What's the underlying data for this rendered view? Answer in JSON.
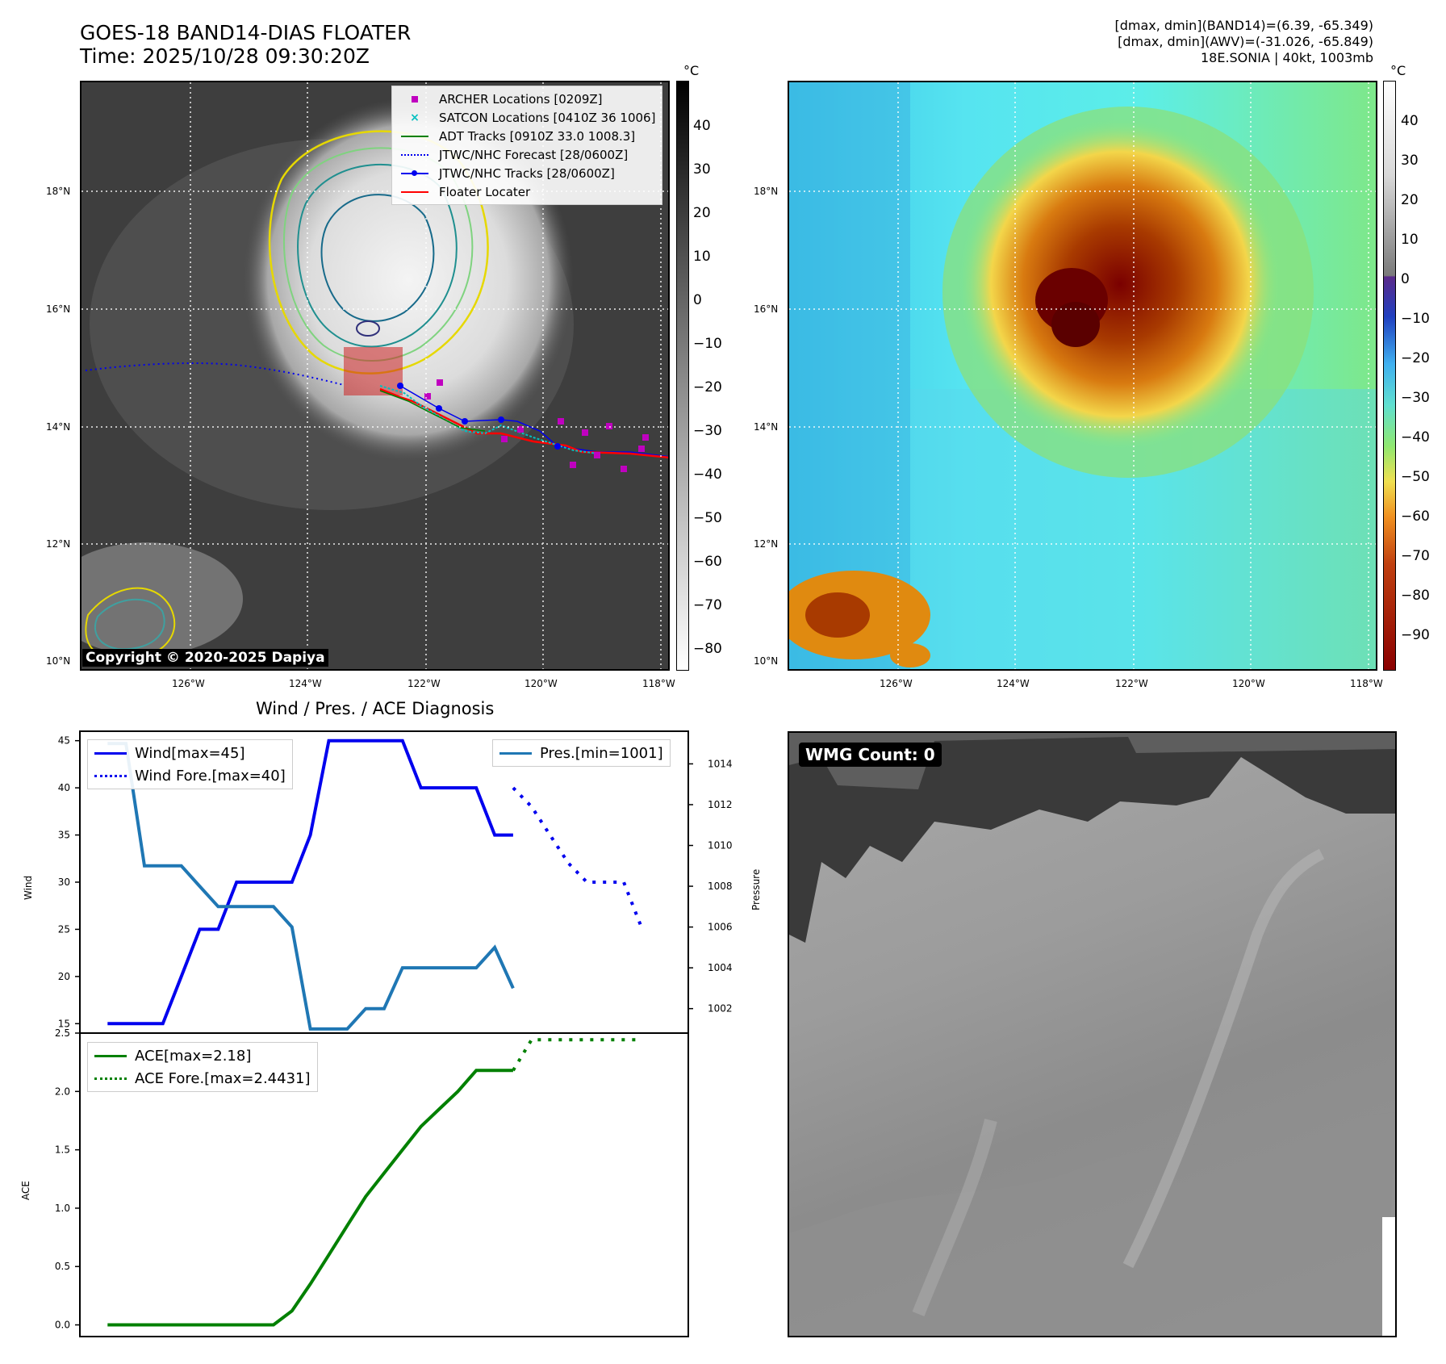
{
  "header": {
    "title_line1": "GOES-18 BAND14-DIAS FLOATER",
    "title_line2": "Time: 2025/10/28 09:30:20Z",
    "info_line1": "[dmax, dmin](BAND14)=(6.39, -65.349)",
    "info_line2": "[dmax, dmin](AWV)=(-31.026, -65.849)",
    "info_line3": "18E.SONIA | 40kt, 1003mb"
  },
  "maps": {
    "lat_labels": [
      "18°N",
      "16°N",
      "14°N",
      "12°N",
      "10°N"
    ],
    "lon_labels": [
      "126°W",
      "124°W",
      "122°W",
      "120°W",
      "118°W"
    ],
    "copyright": "Copyright © 2020-2025 Dapiya",
    "colorbar_unit": "°C",
    "gray_colorbar_ticks": [
      "40",
      "30",
      "20",
      "10",
      "0",
      "−10",
      "−20",
      "−30",
      "−40",
      "−50",
      "−60",
      "−70",
      "−80"
    ],
    "color_colorbar_ticks": [
      "40",
      "30",
      "20",
      "10",
      "0",
      "−10",
      "−20",
      "−30",
      "−40",
      "−50",
      "−60",
      "−70",
      "−80",
      "−90"
    ]
  },
  "map_legend": {
    "archer": "ARCHER Locations [0209Z]",
    "satcon": "SATCON Locations [0410Z 36 1006]",
    "adt": "ADT Tracks [0910Z 33.0 1008.3]",
    "forecast": "JTWC/NHC Forecast [28/0600Z]",
    "tracks": "JTWC/NHC Tracks [28/0600Z]",
    "floater": "Floater Locater",
    "colors": {
      "archer": "#c000c0",
      "satcon": "#00c0c0",
      "adt": "#008000",
      "track": "#0000ff",
      "floater": "#ff0000"
    }
  },
  "wmg": {
    "label": "WMG Count: 0"
  },
  "diag": {
    "title": "Wind / Pres. / ACE Diagnosis",
    "wind_label": "Wind",
    "pressure_label": "Pressure",
    "ace_label": "ACE",
    "wind_legend": "Wind[max=45]",
    "wind_fore_legend": "Wind Fore.[max=40]",
    "pres_legend": "Pres.[min=1001]",
    "ace_legend": "ACE[max=2.18]",
    "ace_fore_legend": "ACE Fore.[max=2.4431]"
  },
  "chart_data": [
    {
      "type": "line",
      "title": "Wind / Pres. / ACE Diagnosis",
      "ylabel": "Wind",
      "ylim": [
        14,
        46
      ],
      "yticks": [
        15,
        20,
        25,
        30,
        35,
        40,
        45
      ],
      "y2label": "Pressure",
      "y2lim": [
        1000.8,
        1015.6
      ],
      "y2ticks": [
        1002,
        1004,
        1006,
        1008,
        1010,
        1012,
        1014
      ],
      "x": [
        0,
        1,
        2,
        3,
        4,
        5,
        6,
        7,
        8,
        9,
        10,
        11,
        12,
        13,
        14,
        15,
        16,
        17,
        18,
        19,
        20,
        21,
        22,
        23,
        24,
        25,
        26,
        27,
        28,
        29
      ],
      "xlim": [
        -1.5,
        31.5
      ],
      "series": [
        {
          "name": "Wind[max=45]",
          "color": "#0000ee",
          "style": "solid",
          "axis": "left",
          "x": [
            0,
            1,
            2,
            3,
            4,
            5,
            6,
            7,
            8,
            9,
            10,
            11,
            12,
            13,
            14,
            15,
            16,
            17,
            18,
            19,
            20,
            21,
            22
          ],
          "values": [
            15,
            15,
            15,
            15,
            20,
            25,
            25,
            30,
            30,
            30,
            30,
            35,
            45,
            45,
            45,
            45,
            45,
            40,
            40,
            40,
            40,
            35,
            35
          ]
        },
        {
          "name": "Wind Fore.[max=40]",
          "color": "#0000ee",
          "style": "dotted",
          "axis": "left",
          "x": [
            22,
            23,
            24,
            25,
            26,
            27,
            28,
            29
          ],
          "values": [
            40,
            38,
            35,
            32,
            30,
            30,
            30,
            25
          ]
        },
        {
          "name": "Pres.[min=1001]",
          "color": "#1f77b4",
          "style": "solid",
          "axis": "right",
          "x": [
            0,
            1,
            2,
            3,
            4,
            5,
            6,
            7,
            8,
            9,
            10,
            11,
            12,
            13,
            14,
            15,
            16,
            17,
            18,
            19,
            20,
            21,
            22
          ],
          "values": [
            1015,
            1015,
            1009,
            1009,
            1009,
            1008,
            1007,
            1007,
            1007,
            1007,
            1006,
            1001,
            1001,
            1001,
            1002,
            1002,
            1004,
            1004,
            1004,
            1004,
            1004,
            1005,
            1003
          ]
        }
      ]
    },
    {
      "type": "line",
      "ylabel": "ACE",
      "ylim": [
        -0.1,
        2.5
      ],
      "yticks": [
        0.0,
        0.5,
        1.0,
        1.5,
        2.0,
        2.5
      ],
      "xlim": [
        -1.5,
        31.5
      ],
      "series": [
        {
          "name": "ACE[max=2.18]",
          "color": "#008000",
          "style": "solid",
          "x": [
            0,
            1,
            2,
            3,
            4,
            5,
            6,
            7,
            8,
            9,
            10,
            11,
            12,
            13,
            14,
            15,
            16,
            17,
            18,
            19,
            20,
            21,
            22
          ],
          "values": [
            0,
            0,
            0,
            0,
            0,
            0,
            0,
            0,
            0,
            0,
            0.12,
            0.35,
            0.6,
            0.85,
            1.1,
            1.3,
            1.5,
            1.7,
            1.85,
            2.0,
            2.18,
            2.18,
            2.18
          ]
        },
        {
          "name": "ACE Fore.[max=2.4431]",
          "color": "#008000",
          "style": "dotted",
          "x": [
            22,
            23,
            24,
            25,
            26,
            27,
            28,
            29
          ],
          "values": [
            2.18,
            2.4431,
            2.4431,
            2.4431,
            2.4431,
            2.4431,
            2.4431,
            2.4431
          ]
        }
      ]
    }
  ]
}
